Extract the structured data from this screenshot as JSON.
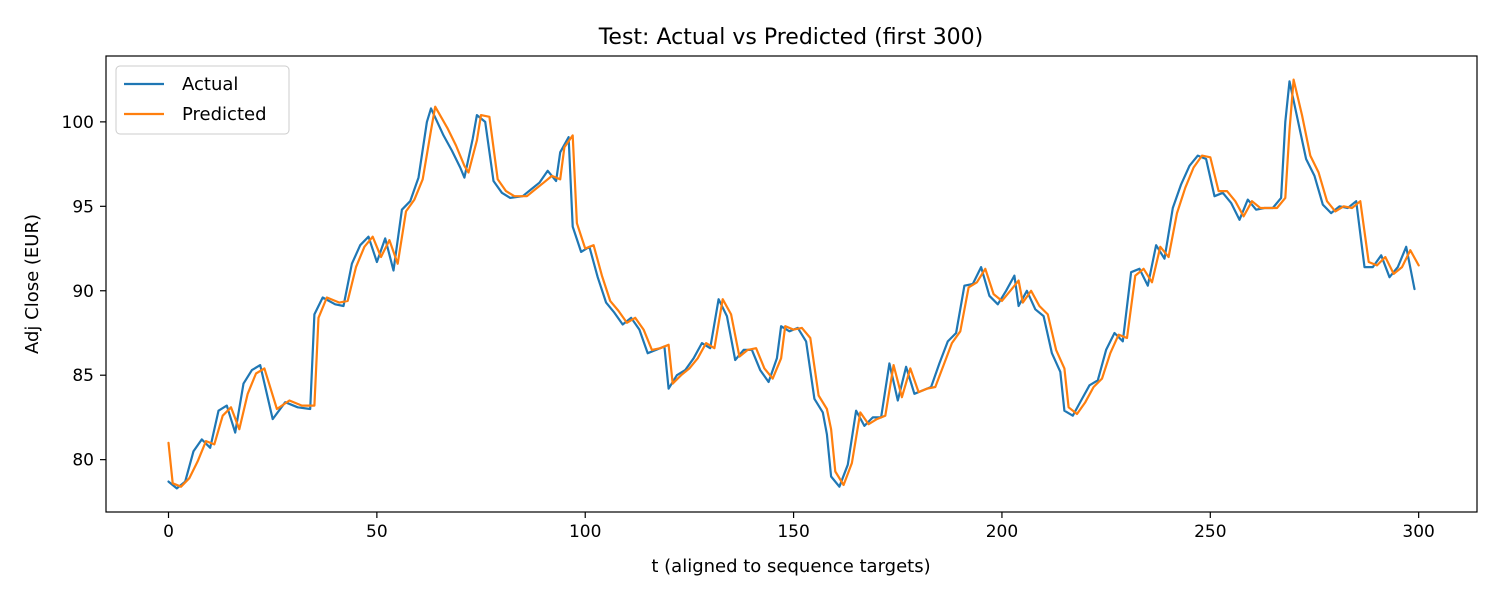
{
  "chart_data": {
    "type": "line",
    "title": "Test: Actual vs Predicted (first 300)",
    "xlabel": "t (aligned to sequence targets)",
    "ylabel": "Adj Close (EUR)",
    "xlim": [
      -15,
      314
    ],
    "ylim": [
      76.9,
      103.9
    ],
    "xticks": [
      0,
      50,
      100,
      150,
      200,
      250,
      300
    ],
    "yticks": [
      80,
      85,
      90,
      95,
      100
    ],
    "grid": false,
    "legend_position": "top-left",
    "series": [
      {
        "name": "Actual",
        "color": "#1f77b4",
        "points": [
          [
            0,
            78.7
          ],
          [
            2,
            78.3
          ],
          [
            4,
            78.7
          ],
          [
            6,
            80.5
          ],
          [
            8,
            81.2
          ],
          [
            10,
            80.7
          ],
          [
            12,
            82.9
          ],
          [
            14,
            83.2
          ],
          [
            16,
            81.6
          ],
          [
            18,
            84.5
          ],
          [
            20,
            85.3
          ],
          [
            22,
            85.6
          ],
          [
            25,
            82.4
          ],
          [
            28,
            83.4
          ],
          [
            31,
            83.1
          ],
          [
            34,
            83.0
          ],
          [
            35,
            88.6
          ],
          [
            37,
            89.6
          ],
          [
            40,
            89.2
          ],
          [
            42,
            89.1
          ],
          [
            44,
            91.6
          ],
          [
            46,
            92.7
          ],
          [
            48,
            93.2
          ],
          [
            50,
            91.7
          ],
          [
            52,
            93.1
          ],
          [
            54,
            91.2
          ],
          [
            56,
            94.8
          ],
          [
            58,
            95.3
          ],
          [
            60,
            96.7
          ],
          [
            62,
            100.0
          ],
          [
            63,
            100.8
          ],
          [
            66,
            99.2
          ],
          [
            68,
            98.3
          ],
          [
            70,
            97.3
          ],
          [
            71,
            96.7
          ],
          [
            73,
            99.0
          ],
          [
            74,
            100.4
          ],
          [
            76,
            100.0
          ],
          [
            78,
            96.5
          ],
          [
            80,
            95.8
          ],
          [
            82,
            95.5
          ],
          [
            85,
            95.6
          ],
          [
            87,
            96.0
          ],
          [
            89,
            96.4
          ],
          [
            91,
            97.1
          ],
          [
            93,
            96.5
          ],
          [
            94,
            98.2
          ],
          [
            96,
            99.1
          ],
          [
            97,
            93.8
          ],
          [
            99,
            92.3
          ],
          [
            101,
            92.6
          ],
          [
            103,
            90.8
          ],
          [
            105,
            89.3
          ],
          [
            107,
            88.7
          ],
          [
            109,
            88.0
          ],
          [
            111,
            88.4
          ],
          [
            113,
            87.7
          ],
          [
            115,
            86.3
          ],
          [
            117,
            86.5
          ],
          [
            119,
            86.7
          ],
          [
            120,
            84.2
          ],
          [
            122,
            85.0
          ],
          [
            124,
            85.3
          ],
          [
            126,
            86.0
          ],
          [
            128,
            86.9
          ],
          [
            130,
            86.6
          ],
          [
            132,
            89.5
          ],
          [
            134,
            88.5
          ],
          [
            136,
            85.9
          ],
          [
            138,
            86.5
          ],
          [
            140,
            86.5
          ],
          [
            142,
            85.3
          ],
          [
            144,
            84.6
          ],
          [
            146,
            86.0
          ],
          [
            147,
            87.9
          ],
          [
            149,
            87.6
          ],
          [
            151,
            87.8
          ],
          [
            153,
            87.0
          ],
          [
            155,
            83.6
          ],
          [
            157,
            82.8
          ],
          [
            158,
            81.5
          ],
          [
            159,
            79.0
          ],
          [
            161,
            78.4
          ],
          [
            163,
            79.7
          ],
          [
            165,
            82.9
          ],
          [
            167,
            82.0
          ],
          [
            169,
            82.5
          ],
          [
            171,
            82.5
          ],
          [
            173,
            85.7
          ],
          [
            175,
            83.5
          ],
          [
            177,
            85.5
          ],
          [
            179,
            83.9
          ],
          [
            181,
            84.1
          ],
          [
            183,
            84.3
          ],
          [
            185,
            85.7
          ],
          [
            187,
            87.0
          ],
          [
            189,
            87.5
          ],
          [
            191,
            90.3
          ],
          [
            193,
            90.4
          ],
          [
            195,
            91.4
          ],
          [
            197,
            89.7
          ],
          [
            199,
            89.2
          ],
          [
            201,
            90.0
          ],
          [
            203,
            90.9
          ],
          [
            204,
            89.1
          ],
          [
            206,
            90.0
          ],
          [
            208,
            88.9
          ],
          [
            210,
            88.5
          ],
          [
            212,
            86.3
          ],
          [
            214,
            85.2
          ],
          [
            215,
            82.9
          ],
          [
            217,
            82.6
          ],
          [
            219,
            83.5
          ],
          [
            221,
            84.4
          ],
          [
            223,
            84.7
          ],
          [
            225,
            86.5
          ],
          [
            227,
            87.5
          ],
          [
            229,
            87.0
          ],
          [
            231,
            91.1
          ],
          [
            233,
            91.3
          ],
          [
            235,
            90.3
          ],
          [
            237,
            92.7
          ],
          [
            239,
            91.9
          ],
          [
            241,
            94.9
          ],
          [
            243,
            96.3
          ],
          [
            245,
            97.4
          ],
          [
            247,
            98.0
          ],
          [
            249,
            97.8
          ],
          [
            251,
            95.6
          ],
          [
            253,
            95.8
          ],
          [
            255,
            95.2
          ],
          [
            257,
            94.2
          ],
          [
            259,
            95.4
          ],
          [
            261,
            94.8
          ],
          [
            263,
            94.9
          ],
          [
            265,
            94.9
          ],
          [
            267,
            95.5
          ],
          [
            268,
            100.0
          ],
          [
            269,
            102.4
          ],
          [
            271,
            100.1
          ],
          [
            273,
            97.8
          ],
          [
            275,
            96.8
          ],
          [
            277,
            95.1
          ],
          [
            279,
            94.6
          ],
          [
            281,
            95.0
          ],
          [
            283,
            94.9
          ],
          [
            285,
            95.3
          ],
          [
            287,
            91.4
          ],
          [
            289,
            91.4
          ],
          [
            291,
            92.1
          ],
          [
            293,
            90.8
          ],
          [
            295,
            91.4
          ],
          [
            297,
            92.6
          ],
          [
            299,
            90.1
          ]
        ]
      },
      {
        "name": "Predicted",
        "color": "#ff7f0e",
        "points": [
          [
            0,
            81.0
          ],
          [
            1,
            78.6
          ],
          [
            3,
            78.4
          ],
          [
            5,
            78.9
          ],
          [
            7,
            79.9
          ],
          [
            9,
            81.1
          ],
          [
            11,
            80.9
          ],
          [
            13,
            82.6
          ],
          [
            15,
            83.1
          ],
          [
            17,
            81.8
          ],
          [
            19,
            83.9
          ],
          [
            21,
            85.1
          ],
          [
            23,
            85.4
          ],
          [
            26,
            83.0
          ],
          [
            29,
            83.5
          ],
          [
            32,
            83.2
          ],
          [
            35,
            83.2
          ],
          [
            36,
            88.4
          ],
          [
            38,
            89.6
          ],
          [
            41,
            89.3
          ],
          [
            43,
            89.4
          ],
          [
            45,
            91.4
          ],
          [
            47,
            92.6
          ],
          [
            49,
            93.2
          ],
          [
            51,
            92.0
          ],
          [
            53,
            93.0
          ],
          [
            55,
            91.6
          ],
          [
            57,
            94.7
          ],
          [
            59,
            95.4
          ],
          [
            61,
            96.6
          ],
          [
            63,
            99.5
          ],
          [
            64,
            100.9
          ],
          [
            67,
            99.6
          ],
          [
            69,
            98.6
          ],
          [
            71,
            97.4
          ],
          [
            72,
            97.0
          ],
          [
            74,
            98.9
          ],
          [
            75,
            100.4
          ],
          [
            77,
            100.3
          ],
          [
            79,
            96.6
          ],
          [
            81,
            95.9
          ],
          [
            83,
            95.6
          ],
          [
            86,
            95.6
          ],
          [
            88,
            96.0
          ],
          [
            90,
            96.4
          ],
          [
            92,
            96.8
          ],
          [
            94,
            96.6
          ],
          [
            95,
            98.5
          ],
          [
            97,
            99.2
          ],
          [
            98,
            94.0
          ],
          [
            100,
            92.5
          ],
          [
            102,
            92.7
          ],
          [
            104,
            90.9
          ],
          [
            106,
            89.4
          ],
          [
            108,
            88.8
          ],
          [
            110,
            88.1
          ],
          [
            112,
            88.4
          ],
          [
            114,
            87.7
          ],
          [
            116,
            86.5
          ],
          [
            118,
            86.6
          ],
          [
            120,
            86.8
          ],
          [
            121,
            84.5
          ],
          [
            123,
            85.0
          ],
          [
            125,
            85.4
          ],
          [
            127,
            86.0
          ],
          [
            129,
            86.9
          ],
          [
            131,
            86.6
          ],
          [
            133,
            89.5
          ],
          [
            135,
            88.6
          ],
          [
            137,
            86.1
          ],
          [
            139,
            86.5
          ],
          [
            141,
            86.6
          ],
          [
            143,
            85.4
          ],
          [
            145,
            84.8
          ],
          [
            147,
            86.0
          ],
          [
            148,
            87.9
          ],
          [
            150,
            87.7
          ],
          [
            152,
            87.8
          ],
          [
            154,
            87.2
          ],
          [
            156,
            83.8
          ],
          [
            158,
            83.0
          ],
          [
            159,
            81.8
          ],
          [
            160,
            79.3
          ],
          [
            162,
            78.5
          ],
          [
            164,
            79.8
          ],
          [
            166,
            82.8
          ],
          [
            168,
            82.1
          ],
          [
            170,
            82.4
          ],
          [
            172,
            82.6
          ],
          [
            174,
            85.6
          ],
          [
            176,
            83.7
          ],
          [
            178,
            85.4
          ],
          [
            180,
            84.0
          ],
          [
            182,
            84.2
          ],
          [
            184,
            84.3
          ],
          [
            186,
            85.6
          ],
          [
            188,
            86.9
          ],
          [
            190,
            87.6
          ],
          [
            192,
            90.2
          ],
          [
            194,
            90.5
          ],
          [
            196,
            91.3
          ],
          [
            198,
            89.8
          ],
          [
            200,
            89.4
          ],
          [
            202,
            90.0
          ],
          [
            204,
            90.6
          ],
          [
            205,
            89.3
          ],
          [
            207,
            90.0
          ],
          [
            209,
            89.1
          ],
          [
            211,
            88.6
          ],
          [
            213,
            86.5
          ],
          [
            215,
            85.4
          ],
          [
            216,
            83.1
          ],
          [
            218,
            82.7
          ],
          [
            220,
            83.4
          ],
          [
            222,
            84.3
          ],
          [
            224,
            84.8
          ],
          [
            226,
            86.3
          ],
          [
            228,
            87.4
          ],
          [
            230,
            87.2
          ],
          [
            232,
            90.9
          ],
          [
            234,
            91.3
          ],
          [
            236,
            90.5
          ],
          [
            238,
            92.6
          ],
          [
            240,
            92.0
          ],
          [
            242,
            94.6
          ],
          [
            244,
            96.1
          ],
          [
            246,
            97.3
          ],
          [
            248,
            98.0
          ],
          [
            250,
            97.9
          ],
          [
            252,
            95.9
          ],
          [
            254,
            95.9
          ],
          [
            256,
            95.3
          ],
          [
            258,
            94.4
          ],
          [
            260,
            95.3
          ],
          [
            262,
            94.9
          ],
          [
            264,
            94.9
          ],
          [
            266,
            94.9
          ],
          [
            268,
            95.5
          ],
          [
            269,
            99.5
          ],
          [
            270,
            102.5
          ],
          [
            272,
            100.4
          ],
          [
            274,
            98.0
          ],
          [
            276,
            97.0
          ],
          [
            278,
            95.3
          ],
          [
            280,
            94.7
          ],
          [
            282,
            95.0
          ],
          [
            284,
            94.9
          ],
          [
            286,
            95.3
          ],
          [
            288,
            91.7
          ],
          [
            290,
            91.5
          ],
          [
            292,
            92.0
          ],
          [
            294,
            91.0
          ],
          [
            296,
            91.4
          ],
          [
            298,
            92.4
          ],
          [
            300,
            91.5
          ]
        ]
      }
    ]
  }
}
